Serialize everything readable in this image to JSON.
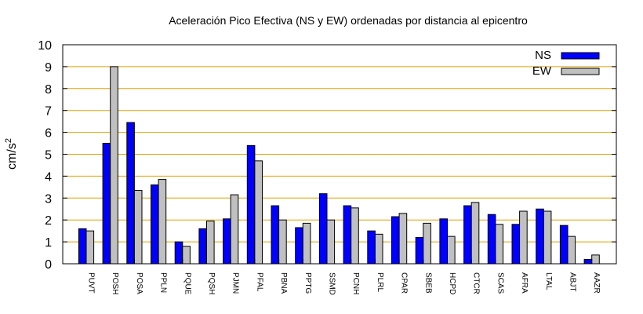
{
  "chart_data": {
    "type": "bar",
    "title": "Aceleración Pico Efectiva (NS y EW) ordenadas por distancia al epicentro",
    "xlabel": "",
    "ylabel": "cm/s",
    "ylabel_sup": "2",
    "ylim": [
      0,
      10
    ],
    "yticks": [
      "0",
      "1",
      "2",
      "3",
      "4",
      "5",
      "6",
      "7",
      "8",
      "9",
      "10"
    ],
    "grid": true,
    "legend_position": "top-right",
    "categories": [
      "PUVT",
      "POSH",
      "POSA",
      "PPLN",
      "PQUE",
      "PQSH",
      "PJMN",
      "PFAL",
      "PBNA",
      "PPTG",
      "SSMD",
      "PCNH",
      "PLRL",
      "CPAR",
      "SBEB",
      "HCPD",
      "CTCR",
      "SCAS",
      "AFRA",
      "LTAL",
      "ABJT",
      "AAZR"
    ],
    "series": [
      {
        "name": "NS",
        "color": "#0000ff",
        "values": [
          1.6,
          5.5,
          6.45,
          3.6,
          1.0,
          1.6,
          2.05,
          5.4,
          2.65,
          1.65,
          3.2,
          2.65,
          1.5,
          2.15,
          1.2,
          2.05,
          2.65,
          2.25,
          1.8,
          2.5,
          1.75,
          0.2
        ]
      },
      {
        "name": "EW",
        "color": "#c0c0c0",
        "values": [
          1.5,
          9.0,
          3.35,
          3.85,
          0.8,
          1.95,
          3.15,
          4.7,
          2.0,
          1.85,
          2.0,
          2.55,
          1.35,
          2.3,
          1.85,
          1.25,
          2.8,
          1.8,
          2.4,
          2.4,
          1.25,
          0.4
        ]
      }
    ],
    "grid_color": "#e0a000"
  }
}
